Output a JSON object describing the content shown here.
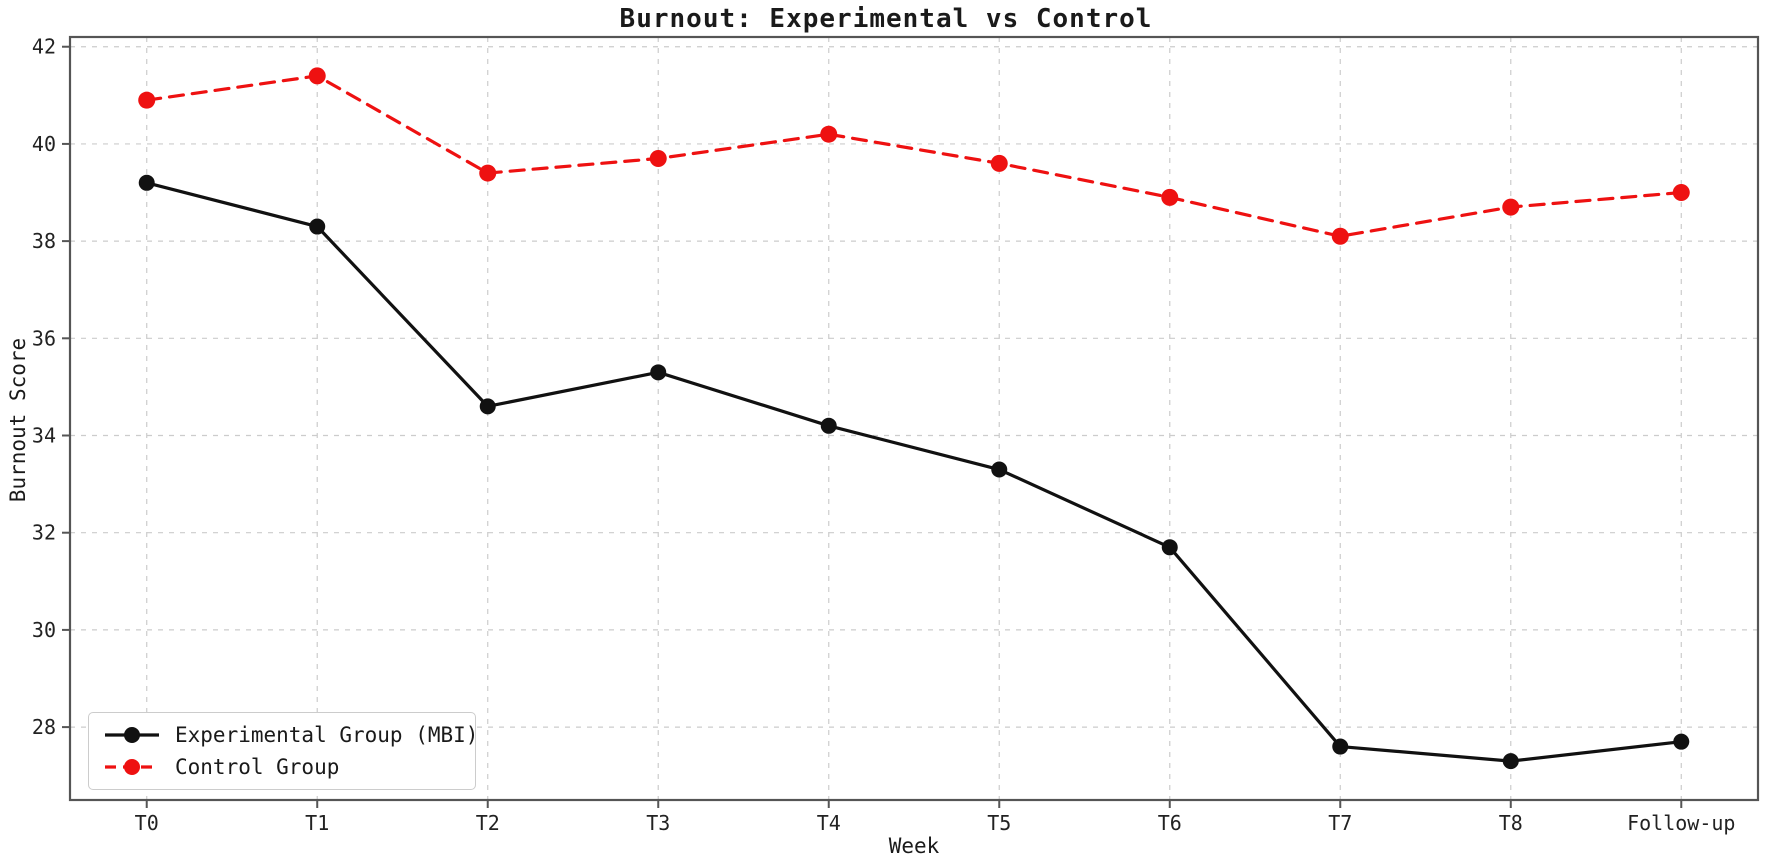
{
  "title": "Burnout: Experimental vs Control",
  "axes": {
    "xlabel": "Week",
    "ylabel": "Burnout Score",
    "x_ticks": [
      "T0",
      "T1",
      "T2",
      "T3",
      "T4",
      "T5",
      "T6",
      "T7",
      "T8",
      "Follow-up"
    ],
    "y_ticks": [
      28,
      30,
      32,
      34,
      36,
      38,
      40,
      42
    ]
  },
  "legend": {
    "items": [
      {
        "label": "Experimental Group (MBI)"
      },
      {
        "label": "Control Group"
      }
    ]
  },
  "colors": {
    "experimental": "#111111",
    "control": "#ee1111",
    "grid": "#cccccc",
    "spine": "#555555",
    "tick_text": "#222222",
    "background": "#ffffff"
  },
  "chart_data": {
    "type": "line",
    "title": "Burnout: Experimental vs Control",
    "xlabel": "Week",
    "ylabel": "Burnout Score",
    "categories": [
      "T0",
      "T1",
      "T2",
      "T3",
      "T4",
      "T5",
      "T6",
      "T7",
      "T8",
      "Follow-up"
    ],
    "series": [
      {
        "name": "Experimental Group (MBI)",
        "color": "#111111",
        "line_style": "solid",
        "marker": "circle",
        "values": [
          39.2,
          38.3,
          34.6,
          35.3,
          34.2,
          33.3,
          31.7,
          27.6,
          27.3,
          27.7
        ]
      },
      {
        "name": "Control Group",
        "color": "#ee1111",
        "line_style": "dashed",
        "marker": "circle",
        "values": [
          40.9,
          41.4,
          39.4,
          39.7,
          40.2,
          39.6,
          38.9,
          38.1,
          38.7,
          39.0
        ]
      }
    ],
    "y_ticks": [
      28,
      30,
      32,
      34,
      36,
      38,
      40,
      42
    ],
    "ylim": [
      26.5,
      42.2
    ],
    "grid": true,
    "grid_style": "dashed",
    "legend_position": "lower left"
  }
}
